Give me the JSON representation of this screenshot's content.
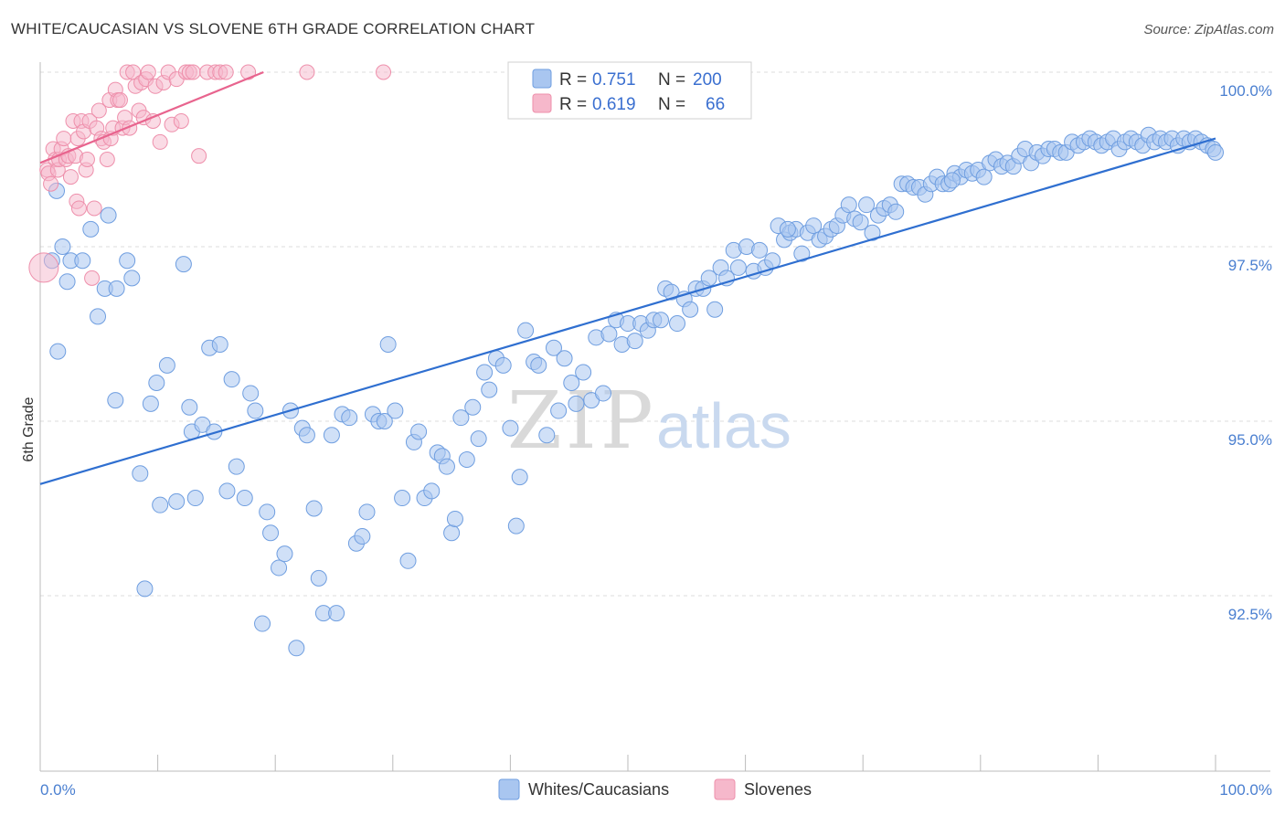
{
  "title": "WHITE/CAUCASIAN VS SLOVENE 6TH GRADE CORRELATION CHART",
  "source": "Source: ZipAtlas.com",
  "watermark": {
    "zip": "ZIP",
    "atlas": "atlas"
  },
  "colors": {
    "blue_fill": "#a9c6f0",
    "blue_stroke": "#6f9ee0",
    "blue_line": "#2f6fd0",
    "pink_fill": "#f6b8cb",
    "pink_stroke": "#ee8fab",
    "pink_line": "#e8648e",
    "grid": "#dddddd",
    "axis_text": "#4a7fd0"
  },
  "legend": {
    "rows": [
      {
        "r_label": "R = ",
        "r_value": "0.751",
        "n_label": "N = ",
        "n_value": "200"
      },
      {
        "r_label": "R = ",
        "r_value": "0.619",
        "n_label": "N = ",
        "n_value": "66"
      }
    ]
  },
  "chart_data": {
    "type": "scatter",
    "title": "WHITE/CAUCASIAN VS SLOVENE 6TH GRADE CORRELATION CHART",
    "xlabel": "",
    "ylabel": "6th Grade",
    "xlim": [
      0,
      100
    ],
    "ylim": [
      90.0,
      100.5
    ],
    "x_tick_labels": [
      "0.0%",
      "100.0%"
    ],
    "y_ticks": [
      92.5,
      95.0,
      97.5,
      100.0
    ],
    "y_tick_labels": [
      "92.5%",
      "95.0%",
      "97.5%",
      "100.0%"
    ],
    "grid": "horizontal dashed",
    "legend_position": "bottom-center",
    "series": [
      {
        "name": "Whites/Caucasians",
        "color": "#a9c6f0",
        "r": 0.751,
        "n": 200,
        "trend": {
          "x": [
            0,
            100
          ],
          "y": [
            94.1,
            99.05
          ]
        },
        "points": [
          [
            1.0,
            97.3
          ],
          [
            1.5,
            96.0
          ],
          [
            1.4,
            98.3
          ],
          [
            1.9,
            97.5
          ],
          [
            2.3,
            97.0
          ],
          [
            2.6,
            97.3
          ],
          [
            3.6,
            97.3
          ],
          [
            4.3,
            97.75
          ],
          [
            4.9,
            96.5
          ],
          [
            5.5,
            96.9
          ],
          [
            5.8,
            97.95
          ],
          [
            6.5,
            96.9
          ],
          [
            7.4,
            97.3
          ],
          [
            7.8,
            97.05
          ],
          [
            6.4,
            95.3
          ],
          [
            8.5,
            94.25
          ],
          [
            8.9,
            92.6
          ],
          [
            9.4,
            95.25
          ],
          [
            9.9,
            95.55
          ],
          [
            10.2,
            93.8
          ],
          [
            10.8,
            95.8
          ],
          [
            11.6,
            93.85
          ],
          [
            12.2,
            97.25
          ],
          [
            12.7,
            95.2
          ],
          [
            12.9,
            94.85
          ],
          [
            13.2,
            93.9
          ],
          [
            13.8,
            94.95
          ],
          [
            14.4,
            96.05
          ],
          [
            14.8,
            94.85
          ],
          [
            15.3,
            96.1
          ],
          [
            15.9,
            94.0
          ],
          [
            16.3,
            95.6
          ],
          [
            16.7,
            94.35
          ],
          [
            17.4,
            93.9
          ],
          [
            17.9,
            95.4
          ],
          [
            18.3,
            95.15
          ],
          [
            18.9,
            92.1
          ],
          [
            19.3,
            93.7
          ],
          [
            19.6,
            93.4
          ],
          [
            20.3,
            92.9
          ],
          [
            20.8,
            93.1
          ],
          [
            21.3,
            95.15
          ],
          [
            21.8,
            91.75
          ],
          [
            22.3,
            94.9
          ],
          [
            22.7,
            94.8
          ],
          [
            23.3,
            93.75
          ],
          [
            23.7,
            92.75
          ],
          [
            24.1,
            92.25
          ],
          [
            24.8,
            94.8
          ],
          [
            25.2,
            92.25
          ],
          [
            25.7,
            95.1
          ],
          [
            26.3,
            95.05
          ],
          [
            26.9,
            93.25
          ],
          [
            27.4,
            93.35
          ],
          [
            27.8,
            93.7
          ],
          [
            28.3,
            95.1
          ],
          [
            28.8,
            95.0
          ],
          [
            29.3,
            95.0
          ],
          [
            29.6,
            96.1
          ],
          [
            30.2,
            95.15
          ],
          [
            30.8,
            93.9
          ],
          [
            31.3,
            93.0
          ],
          [
            31.8,
            94.7
          ],
          [
            32.2,
            94.85
          ],
          [
            32.7,
            93.9
          ],
          [
            33.3,
            94.0
          ],
          [
            33.8,
            94.55
          ],
          [
            34.2,
            94.5
          ],
          [
            34.6,
            94.35
          ],
          [
            35.0,
            93.4
          ],
          [
            35.3,
            93.6
          ],
          [
            35.8,
            95.05
          ],
          [
            36.3,
            94.45
          ],
          [
            36.8,
            95.2
          ],
          [
            37.3,
            94.75
          ],
          [
            37.8,
            95.7
          ],
          [
            38.2,
            95.45
          ],
          [
            38.8,
            95.9
          ],
          [
            39.4,
            95.8
          ],
          [
            40.0,
            94.9
          ],
          [
            40.5,
            93.5
          ],
          [
            40.8,
            94.2
          ],
          [
            41.3,
            96.3
          ],
          [
            42.0,
            95.85
          ],
          [
            42.4,
            95.8
          ],
          [
            43.1,
            94.8
          ],
          [
            43.7,
            96.05
          ],
          [
            44.1,
            95.15
          ],
          [
            44.6,
            95.9
          ],
          [
            45.2,
            95.55
          ],
          [
            45.6,
            95.25
          ],
          [
            46.2,
            95.7
          ],
          [
            46.9,
            95.3
          ],
          [
            47.3,
            96.2
          ],
          [
            47.9,
            95.4
          ],
          [
            48.4,
            96.25
          ],
          [
            49.0,
            96.45
          ],
          [
            49.5,
            96.1
          ],
          [
            50.0,
            96.4
          ],
          [
            50.6,
            96.15
          ],
          [
            51.1,
            96.4
          ],
          [
            51.7,
            96.3
          ],
          [
            52.2,
            96.45
          ],
          [
            52.8,
            96.45
          ],
          [
            53.2,
            96.9
          ],
          [
            53.7,
            96.85
          ],
          [
            54.2,
            96.4
          ],
          [
            54.8,
            96.75
          ],
          [
            55.3,
            96.6
          ],
          [
            55.8,
            96.9
          ],
          [
            56.4,
            96.9
          ],
          [
            56.9,
            97.05
          ],
          [
            57.4,
            96.6
          ],
          [
            57.9,
            97.2
          ],
          [
            58.4,
            97.05
          ],
          [
            59.0,
            97.45
          ],
          [
            59.4,
            97.2
          ],
          [
            60.1,
            97.5
          ],
          [
            60.7,
            97.15
          ],
          [
            61.2,
            97.45
          ],
          [
            61.7,
            97.2
          ],
          [
            62.3,
            97.3
          ],
          [
            62.8,
            97.8
          ],
          [
            63.3,
            97.6
          ],
          [
            63.8,
            97.7
          ],
          [
            64.3,
            97.75
          ],
          [
            64.8,
            97.4
          ],
          [
            65.3,
            97.7
          ],
          [
            65.8,
            97.8
          ],
          [
            66.3,
            97.6
          ],
          [
            66.8,
            97.65
          ],
          [
            67.3,
            97.75
          ],
          [
            67.8,
            97.8
          ],
          [
            68.3,
            97.95
          ],
          [
            68.8,
            98.1
          ],
          [
            69.3,
            97.9
          ],
          [
            69.8,
            97.85
          ],
          [
            70.3,
            98.1
          ],
          [
            70.8,
            97.7
          ],
          [
            71.3,
            97.95
          ],
          [
            71.8,
            98.05
          ],
          [
            72.3,
            98.1
          ],
          [
            72.8,
            98.0
          ],
          [
            73.3,
            98.4
          ],
          [
            73.8,
            98.4
          ],
          [
            74.3,
            98.35
          ],
          [
            74.8,
            98.35
          ],
          [
            75.3,
            98.25
          ],
          [
            75.8,
            98.4
          ],
          [
            76.3,
            98.5
          ],
          [
            76.8,
            98.4
          ],
          [
            77.3,
            98.4
          ],
          [
            77.8,
            98.55
          ],
          [
            78.3,
            98.5
          ],
          [
            78.8,
            98.6
          ],
          [
            79.3,
            98.55
          ],
          [
            79.8,
            98.6
          ],
          [
            80.3,
            98.5
          ],
          [
            80.8,
            98.7
          ],
          [
            81.3,
            98.75
          ],
          [
            81.8,
            98.65
          ],
          [
            82.3,
            98.7
          ],
          [
            82.8,
            98.65
          ],
          [
            83.3,
            98.8
          ],
          [
            83.8,
            98.9
          ],
          [
            84.3,
            98.7
          ],
          [
            84.8,
            98.85
          ],
          [
            85.3,
            98.8
          ],
          [
            85.8,
            98.9
          ],
          [
            86.3,
            98.9
          ],
          [
            86.8,
            98.85
          ],
          [
            87.3,
            98.85
          ],
          [
            87.8,
            99.0
          ],
          [
            88.3,
            98.95
          ],
          [
            88.8,
            99.0
          ],
          [
            89.3,
            99.05
          ],
          [
            89.8,
            99.0
          ],
          [
            90.3,
            98.95
          ],
          [
            90.8,
            99.0
          ],
          [
            91.3,
            99.05
          ],
          [
            91.8,
            98.9
          ],
          [
            92.3,
            99.0
          ],
          [
            92.8,
            99.05
          ],
          [
            93.3,
            99.0
          ],
          [
            93.8,
            98.95
          ],
          [
            94.3,
            99.1
          ],
          [
            94.8,
            99.0
          ],
          [
            95.3,
            99.05
          ],
          [
            95.8,
            99.0
          ],
          [
            96.3,
            99.05
          ],
          [
            96.8,
            98.95
          ],
          [
            97.3,
            99.05
          ],
          [
            97.8,
            99.0
          ],
          [
            98.3,
            99.05
          ],
          [
            98.8,
            99.0
          ],
          [
            99.3,
            98.95
          ],
          [
            99.8,
            98.9
          ],
          [
            100.0,
            98.85
          ],
          [
            77.6,
            98.45
          ],
          [
            63.6,
            97.75
          ]
        ]
      },
      {
        "name": "Slovenes",
        "color": "#f6b8cb",
        "r": 0.619,
        "n": 66,
        "trend": {
          "x": [
            0,
            19
          ],
          "y": [
            98.7,
            100.0
          ]
        },
        "points": [
          [
            0.3,
            97.2
          ],
          [
            0.6,
            98.6
          ],
          [
            0.7,
            98.55
          ],
          [
            0.9,
            98.4
          ],
          [
            1.1,
            98.9
          ],
          [
            1.3,
            98.75
          ],
          [
            1.5,
            98.6
          ],
          [
            1.6,
            98.75
          ],
          [
            1.8,
            98.9
          ],
          [
            2.0,
            99.05
          ],
          [
            2.2,
            98.75
          ],
          [
            2.4,
            98.8
          ],
          [
            2.6,
            98.5
          ],
          [
            2.8,
            99.3
          ],
          [
            3.0,
            98.8
          ],
          [
            3.1,
            98.15
          ],
          [
            3.2,
            99.05
          ],
          [
            3.3,
            98.05
          ],
          [
            3.5,
            99.3
          ],
          [
            3.7,
            99.15
          ],
          [
            3.9,
            98.6
          ],
          [
            4.0,
            98.75
          ],
          [
            4.2,
            99.3
          ],
          [
            4.4,
            97.05
          ],
          [
            4.6,
            98.05
          ],
          [
            4.8,
            99.2
          ],
          [
            5.0,
            99.45
          ],
          [
            5.2,
            99.05
          ],
          [
            5.4,
            99.0
          ],
          [
            5.7,
            98.75
          ],
          [
            5.9,
            99.6
          ],
          [
            6.0,
            99.05
          ],
          [
            6.2,
            99.2
          ],
          [
            6.4,
            99.75
          ],
          [
            6.6,
            99.6
          ],
          [
            6.8,
            99.6
          ],
          [
            7.0,
            99.2
          ],
          [
            7.2,
            99.35
          ],
          [
            7.4,
            100.0
          ],
          [
            7.6,
            99.2
          ],
          [
            7.9,
            100.0
          ],
          [
            8.1,
            99.8
          ],
          [
            8.4,
            99.45
          ],
          [
            8.6,
            99.85
          ],
          [
            8.8,
            99.35
          ],
          [
            9.0,
            99.9
          ],
          [
            9.2,
            100.0
          ],
          [
            9.6,
            99.3
          ],
          [
            9.8,
            99.8
          ],
          [
            10.2,
            99.0
          ],
          [
            10.5,
            99.85
          ],
          [
            10.9,
            100.0
          ],
          [
            11.2,
            99.25
          ],
          [
            11.6,
            99.9
          ],
          [
            12.0,
            99.3
          ],
          [
            12.4,
            100.0
          ],
          [
            12.7,
            100.0
          ],
          [
            13.0,
            100.0
          ],
          [
            13.5,
            98.8
          ],
          [
            14.2,
            100.0
          ],
          [
            14.9,
            100.0
          ],
          [
            15.3,
            100.0
          ],
          [
            15.8,
            100.0
          ],
          [
            17.7,
            100.0
          ],
          [
            22.7,
            100.0
          ],
          [
            29.2,
            100.0
          ]
        ]
      }
    ]
  }
}
